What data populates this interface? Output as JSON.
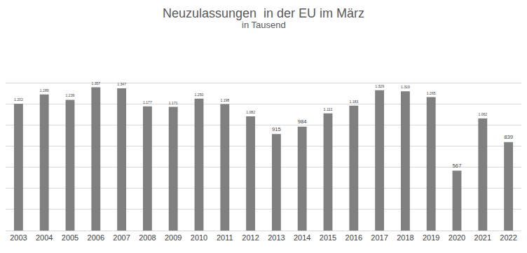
{
  "chart_data": {
    "type": "bar",
    "title": "Neuzulassungen  in der EU im März",
    "subtitle": "in Tausend",
    "categories": [
      "2003",
      "2004",
      "2005",
      "2006",
      "2007",
      "2008",
      "2009",
      "2010",
      "2011",
      "2012",
      "2013",
      "2014",
      "2015",
      "2016",
      "2017",
      "2018",
      "2019",
      "2020",
      "2021",
      "2022"
    ],
    "values": [
      1202,
      1289,
      1239,
      1357,
      1347,
      1177,
      1171,
      1250,
      1198,
      1082,
      915,
      984,
      1111,
      1183,
      1329,
      1319,
      1265,
      567,
      1062,
      839
    ],
    "value_labels": [
      "1.202",
      "1.289",
      "1.239",
      "1.357",
      "1.347",
      "1.177",
      "1.171",
      "1.250",
      "1.198",
      "1.082",
      "915",
      "984",
      "1.111",
      "1.183",
      "1.329",
      "1.319",
      "1.265",
      "567",
      "1.062",
      "839"
    ],
    "data_labels": true,
    "color": "#808080",
    "ylim": [
      0,
      1600
    ],
    "yticks": [
      0,
      200,
      400,
      600,
      800,
      1000,
      1200,
      1400,
      1600
    ],
    "grid": true,
    "tick_labels": "x"
  }
}
